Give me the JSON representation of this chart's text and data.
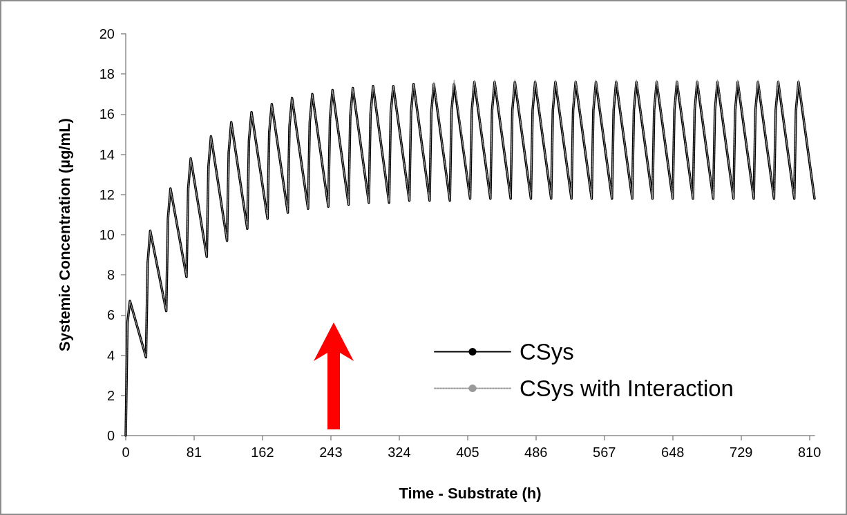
{
  "chart_data": {
    "type": "line",
    "xlabel": "Time - Substrate (h)",
    "ylabel": "Systemic Concentration (µg/mL)",
    "x": [
      0,
      2,
      5,
      24,
      26,
      29,
      48,
      50,
      53,
      72,
      74,
      77,
      96,
      98,
      101,
      120,
      122,
      125,
      144,
      146,
      149,
      168,
      170,
      173,
      192,
      194,
      197,
      216,
      218,
      221,
      240,
      242,
      245,
      264,
      266,
      269,
      288,
      290,
      293,
      312,
      314,
      317,
      336,
      338,
      341,
      360,
      362,
      365,
      384,
      386,
      389,
      408,
      410,
      413,
      432,
      434,
      437,
      456,
      458,
      461,
      480,
      482,
      485,
      504,
      506,
      509,
      528,
      530,
      533,
      552,
      554,
      557,
      576,
      578,
      581,
      600,
      602,
      605,
      624,
      626,
      629,
      648,
      650,
      653,
      672,
      674,
      677,
      696,
      698,
      701,
      720,
      722,
      725,
      744,
      746,
      749,
      768,
      770,
      773,
      792,
      794,
      797,
      816
    ],
    "series": [
      {
        "name": "CSys",
        "color": "#000000",
        "line_style": "solid",
        "values": [
          0,
          5.6,
          6.7,
          3.9,
          8.6,
          10.2,
          6.2,
          10.8,
          12.3,
          7.9,
          12.3,
          13.8,
          8.9,
          13.4,
          14.9,
          9.7,
          14.1,
          15.6,
          10.3,
          14.7,
          16.1,
          10.8,
          15.1,
          16.5,
          11.1,
          15.4,
          16.8,
          11.3,
          15.6,
          17.0,
          11.4,
          15.8,
          17.2,
          11.5,
          15.9,
          17.3,
          11.6,
          16.0,
          17.4,
          11.6,
          16.1,
          17.4,
          11.7,
          16.1,
          17.5,
          11.7,
          16.1,
          17.5,
          11.7,
          16.2,
          17.5,
          11.8,
          16.2,
          17.6,
          11.8,
          16.2,
          17.6,
          11.8,
          16.2,
          17.6,
          11.8,
          16.2,
          17.6,
          11.8,
          16.2,
          17.6,
          11.8,
          16.2,
          17.6,
          11.8,
          16.2,
          17.6,
          11.8,
          16.2,
          17.6,
          11.8,
          16.2,
          17.6,
          11.8,
          16.2,
          17.6,
          11.8,
          16.2,
          17.6,
          11.8,
          16.2,
          17.6,
          11.8,
          16.2,
          17.6,
          11.8,
          16.2,
          17.6,
          11.8,
          16.2,
          17.6,
          11.8,
          16.2,
          17.6,
          11.8,
          16.2,
          17.6,
          11.8
        ]
      },
      {
        "name": "CSys with Interaction",
        "color": "#9a9a9a",
        "line_style": "dotted",
        "values": [
          0,
          5.6,
          6.7,
          3.9,
          8.6,
          10.2,
          6.2,
          10.8,
          12.3,
          7.9,
          12.3,
          13.8,
          8.9,
          13.4,
          14.9,
          9.7,
          14.1,
          15.6,
          10.3,
          14.7,
          16.1,
          10.8,
          15.1,
          16.5,
          11.1,
          15.4,
          16.8,
          11.3,
          15.6,
          17.0,
          11.4,
          15.8,
          17.2,
          11.5,
          15.9,
          17.3,
          11.6,
          16.0,
          17.4,
          11.6,
          16.1,
          17.4,
          11.7,
          16.1,
          17.5,
          11.7,
          16.1,
          17.6,
          11.7,
          16.2,
          17.7,
          11.8,
          16.2,
          17.7,
          11.8,
          16.2,
          17.7,
          11.8,
          16.2,
          17.7,
          11.8,
          16.2,
          17.7,
          11.8,
          16.2,
          17.7,
          11.8,
          16.2,
          17.7,
          11.8,
          16.2,
          17.7,
          11.8,
          16.2,
          17.7,
          11.8,
          16.2,
          17.7,
          11.8,
          16.2,
          17.7,
          11.8,
          16.2,
          17.7,
          11.8,
          16.2,
          17.7,
          11.8,
          16.2,
          17.7,
          11.8,
          16.2,
          17.7,
          11.8,
          16.2,
          17.7,
          11.8,
          16.2,
          17.7,
          11.8,
          16.2,
          17.7,
          11.8
        ]
      }
    ],
    "xlim": [
      0,
      816
    ],
    "xticks": [
      0,
      81,
      162,
      243,
      324,
      405,
      486,
      567,
      648,
      729,
      810
    ],
    "ylim": [
      0,
      20
    ],
    "yticks": [
      0,
      2,
      4,
      6,
      8,
      10,
      12,
      14,
      16,
      18,
      20
    ],
    "grid": false,
    "legend": "bottom right",
    "marker": "none"
  }
}
